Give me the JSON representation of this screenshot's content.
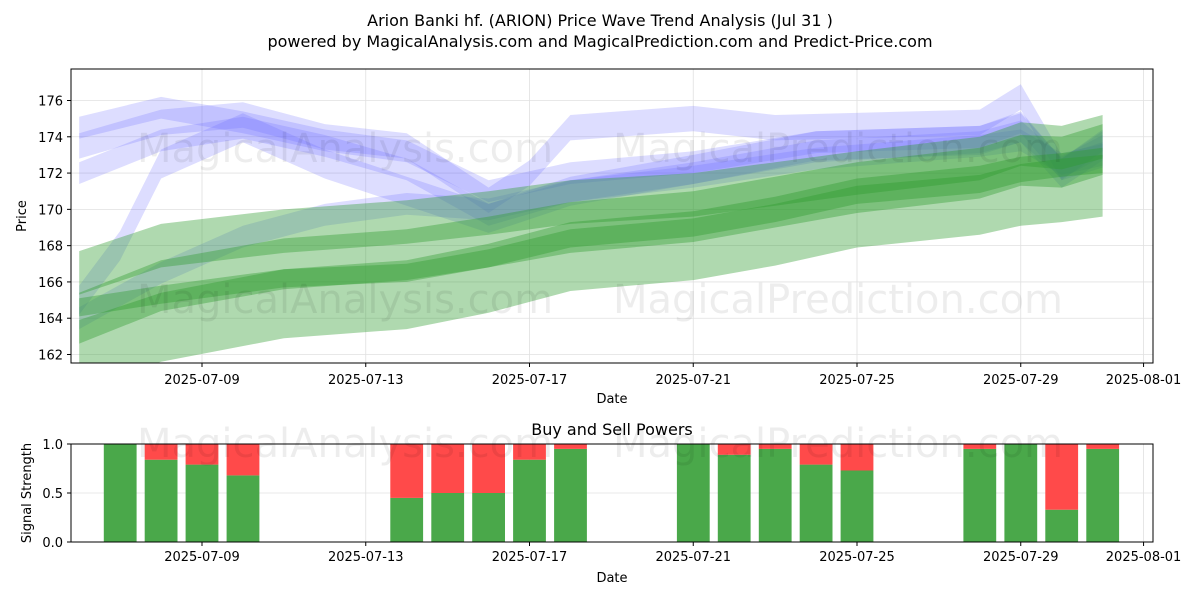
{
  "title": "Arion Banki hf. (ARION) Price Wave Trend Analysis (Jul 31 )",
  "subtitle": "powered by MagicalAnalysis.com and MagicalPrediction.com and Predict-Price.com",
  "watermarks": [
    "MagicalAnalysis.com",
    "MagicalPrediction.com"
  ],
  "colors": {
    "blue_band": "#6666ff",
    "green_band": "#2e9a2e",
    "buy": "#4aa84a",
    "sell": "#ff4a4a",
    "grid": "#e0e0e0"
  },
  "chart_data": [
    {
      "type": "area",
      "xlabel": "Date",
      "ylabel": "Price",
      "xlim": [
        "2025-07-05",
        "2025-07-31"
      ],
      "ylim": [
        161.5,
        177.7
      ],
      "x_ticks": [
        "2025-07-09",
        "2025-07-13",
        "2025-07-17",
        "2025-07-21",
        "2025-07-25",
        "2025-07-29",
        "2025-08-01"
      ],
      "y_ticks": [
        162,
        164,
        166,
        168,
        170,
        172,
        174,
        176
      ],
      "grid": true,
      "series": [
        {
          "color": "blue",
          "dates": [
            "2025-07-06",
            "2025-07-08",
            "2025-07-10",
            "2025-07-12",
            "2025-07-14",
            "2025-07-16",
            "2025-07-18",
            "2025-07-21",
            "2025-07-24",
            "2025-07-28",
            "2025-07-29",
            "2025-07-30",
            "2025-07-31"
          ],
          "center": [
            174.5,
            175.6,
            174.8,
            173.8,
            173.2,
            171.0,
            172.0,
            172.6,
            173.7,
            174.0,
            174.8,
            172.2,
            173.8
          ],
          "width": 1.2
        },
        {
          "color": "blue",
          "dates": [
            "2025-07-06",
            "2025-07-08",
            "2025-07-10",
            "2025-07-12",
            "2025-07-14",
            "2025-07-16",
            "2025-07-18",
            "2025-07-21",
            "2025-07-24",
            "2025-07-28",
            "2025-07-29",
            "2025-07-30",
            "2025-07-31"
          ],
          "center": [
            172.0,
            173.8,
            174.5,
            173.5,
            172.2,
            169.7,
            171.0,
            172.0,
            173.2,
            173.7,
            174.3,
            172.3,
            173.5
          ],
          "width": 1.2
        },
        {
          "color": "blue",
          "dates": [
            "2025-07-06",
            "2025-07-08",
            "2025-07-10",
            "2025-07-12",
            "2025-07-14",
            "2025-07-16",
            "2025-07-17",
            "2025-07-18",
            "2025-07-21",
            "2025-07-23",
            "2025-07-28",
            "2025-07-29",
            "2025-07-30",
            "2025-07-31"
          ],
          "center": [
            173.5,
            174.8,
            175.2,
            174.0,
            173.5,
            170.5,
            172.0,
            174.5,
            175.0,
            174.5,
            174.8,
            176.2,
            172.3,
            173.0
          ],
          "width": 1.4
        },
        {
          "color": "blue",
          "dates": [
            "2025-07-06",
            "2025-07-07",
            "2025-07-08",
            "2025-07-10",
            "2025-07-12",
            "2025-07-14",
            "2025-07-16",
            "2025-07-18",
            "2025-07-21",
            "2025-07-24",
            "2025-07-28",
            "2025-07-29",
            "2025-07-30",
            "2025-07-31"
          ],
          "center": [
            165.0,
            168.0,
            172.5,
            174.5,
            172.5,
            171.0,
            169.5,
            171.0,
            172.2,
            173.5,
            173.8,
            174.5,
            172.0,
            173.5
          ],
          "width": 1.6
        },
        {
          "color": "blue",
          "dates": [
            "2025-07-06",
            "2025-07-08",
            "2025-07-10",
            "2025-07-12",
            "2025-07-14",
            "2025-07-16",
            "2025-07-18",
            "2025-07-21",
            "2025-07-24",
            "2025-07-28",
            "2025-07-29",
            "2025-07-30",
            "2025-07-31"
          ],
          "center": [
            164.0,
            166.5,
            168.5,
            169.7,
            170.3,
            170.0,
            171.0,
            171.8,
            172.8,
            173.5,
            173.8,
            172.5,
            173.0
          ],
          "width": 1.2
        },
        {
          "color": "green",
          "dates": [
            "2025-07-06",
            "2025-07-08",
            "2025-07-11",
            "2025-07-14",
            "2025-07-16",
            "2025-07-18",
            "2025-07-21",
            "2025-07-23",
            "2025-07-25",
            "2025-07-28",
            "2025-07-29",
            "2025-07-30",
            "2025-07-31"
          ],
          "center": [
            164.6,
            165.3,
            166.2,
            166.5,
            167.3,
            168.4,
            169.0,
            169.8,
            170.8,
            171.4,
            172.0,
            172.3,
            172.5
          ],
          "width": 1.0
        },
        {
          "color": "green",
          "dates": [
            "2025-07-06",
            "2025-07-08",
            "2025-07-11",
            "2025-07-14",
            "2025-07-16",
            "2025-07-18",
            "2025-07-21",
            "2025-07-23",
            "2025-07-25",
            "2025-07-28",
            "2025-07-29",
            "2025-07-30",
            "2025-07-31"
          ],
          "center": [
            164.0,
            165.8,
            167.0,
            167.5,
            168.2,
            169.0,
            169.6,
            170.4,
            171.2,
            172.0,
            172.7,
            172.6,
            173.3
          ],
          "width": 2.8
        },
        {
          "color": "green",
          "dates": [
            "2025-07-06",
            "2025-07-08",
            "2025-07-11",
            "2025-07-14",
            "2025-07-16",
            "2025-07-18",
            "2025-07-21",
            "2025-07-23",
            "2025-07-25",
            "2025-07-28",
            "2025-07-29",
            "2025-07-30",
            "2025-07-31"
          ],
          "center": [
            166.5,
            168.0,
            168.8,
            169.3,
            169.8,
            170.4,
            170.8,
            171.4,
            172.0,
            172.8,
            173.6,
            173.4,
            174.0
          ],
          "width": 2.4
        },
        {
          "color": "green",
          "dates": [
            "2025-07-06",
            "2025-07-08",
            "2025-07-11",
            "2025-07-14",
            "2025-07-16",
            "2025-07-18",
            "2025-07-21",
            "2025-07-23",
            "2025-07-25",
            "2025-07-28",
            "2025-07-29",
            "2025-07-30",
            "2025-07-31"
          ],
          "center": [
            162.0,
            163.5,
            164.8,
            165.3,
            166.2,
            167.4,
            168.0,
            168.8,
            169.8,
            170.5,
            171.0,
            171.2,
            171.5
          ],
          "width": 3.8
        }
      ]
    },
    {
      "type": "bar",
      "title": "Buy and Sell Powers",
      "xlabel": "Date",
      "ylabel": "Signal Strength",
      "xlim": [
        "2025-07-05",
        "2025-07-31"
      ],
      "ylim": [
        0,
        1.0
      ],
      "x_ticks": [
        "2025-07-09",
        "2025-07-13",
        "2025-07-17",
        "2025-07-21",
        "2025-07-25",
        "2025-07-29",
        "2025-08-01"
      ],
      "y_ticks": [
        "0.0",
        "0.5",
        "1.0"
      ],
      "dates": [
        "2025-07-07",
        "2025-07-08",
        "2025-07-09",
        "2025-07-10",
        "2025-07-14",
        "2025-07-15",
        "2025-07-16",
        "2025-07-17",
        "2025-07-18",
        "2025-07-21",
        "2025-07-22",
        "2025-07-23",
        "2025-07-24",
        "2025-07-25",
        "2025-07-28",
        "2025-07-29",
        "2025-07-30",
        "2025-07-31"
      ],
      "series": [
        {
          "name": "Buy",
          "values": [
            1.0,
            0.84,
            0.79,
            0.68,
            0.45,
            0.5,
            0.5,
            0.84,
            0.95,
            1.0,
            0.89,
            0.95,
            0.79,
            0.73,
            0.95,
            1.0,
            0.33,
            0.95
          ]
        },
        {
          "name": "Sell",
          "values": [
            0.0,
            0.16,
            0.21,
            0.32,
            0.55,
            0.5,
            0.5,
            0.16,
            0.05,
            0.0,
            0.11,
            0.05,
            0.21,
            0.27,
            0.05,
            0.0,
            0.67,
            0.05
          ]
        }
      ]
    }
  ]
}
